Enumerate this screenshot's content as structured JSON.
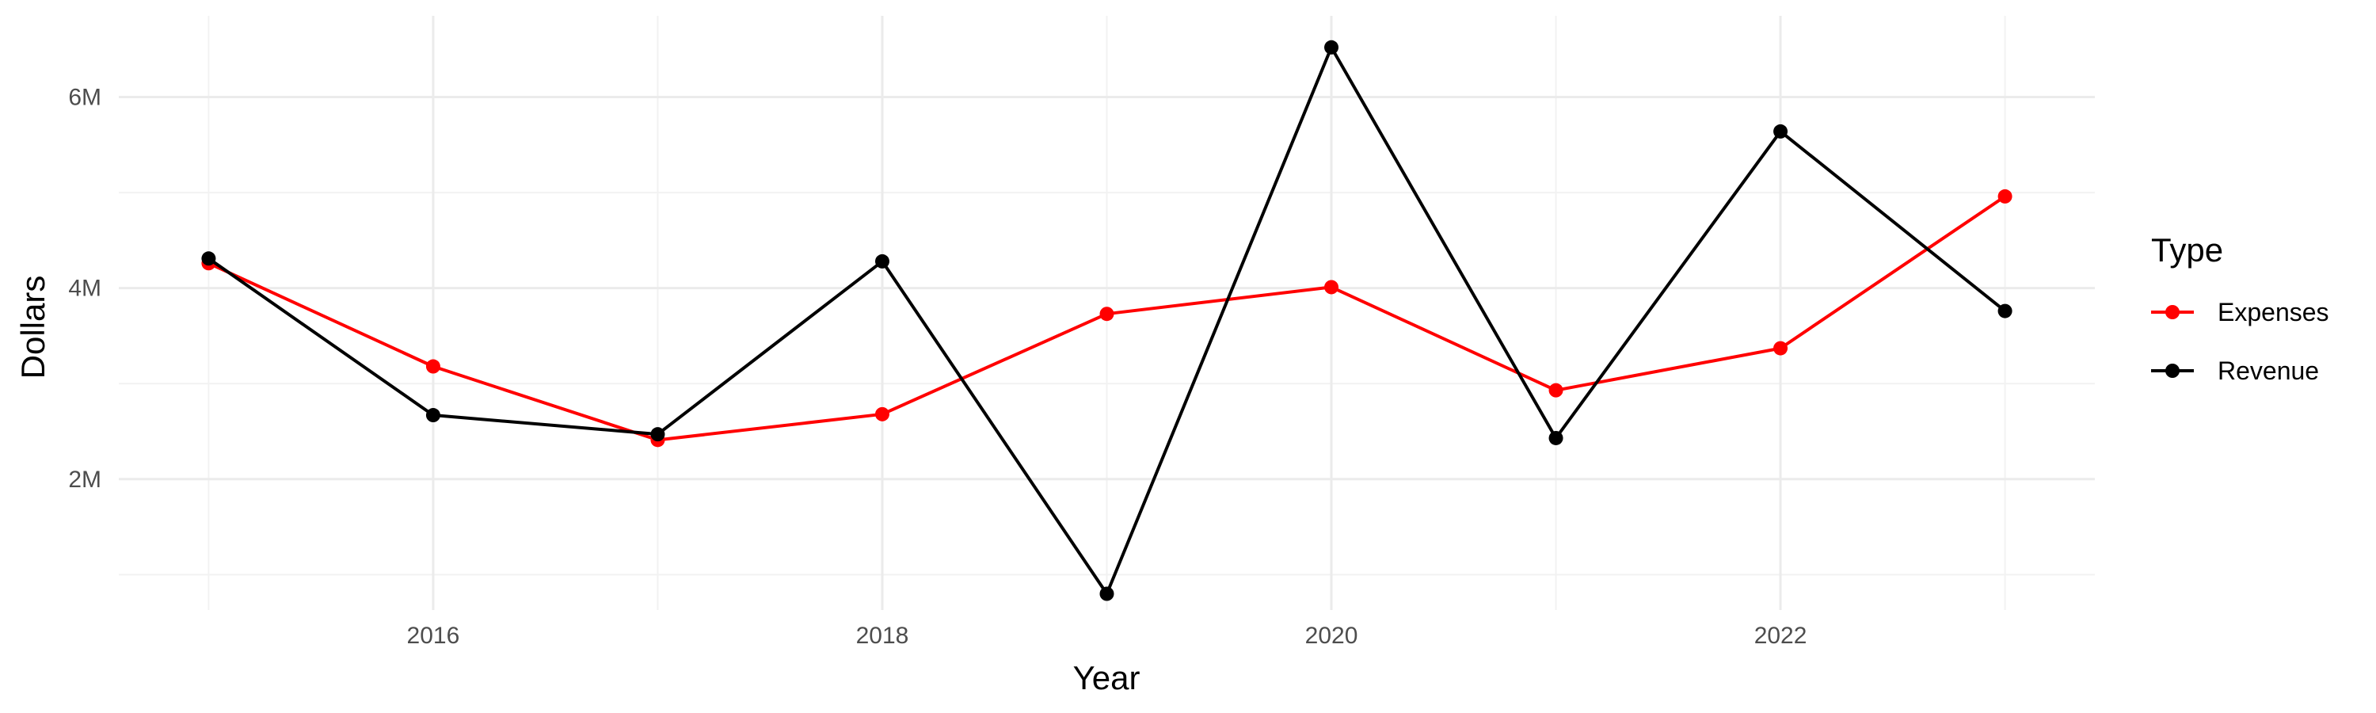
{
  "chart_data": {
    "type": "line",
    "x": [
      2015,
      2016,
      2017,
      2018,
      2019,
      2020,
      2021,
      2022,
      2023
    ],
    "xticks": [
      2016,
      2018,
      2020,
      2022
    ],
    "yticks": [
      2000000,
      4000000,
      6000000
    ],
    "ytick_labels": [
      "2M",
      "4M",
      "6M"
    ],
    "xlabel": "Year",
    "ylabel": "Dollars",
    "xlim": [
      2014.6,
      2023.4
    ],
    "ylim": [
      630000,
      6850000
    ],
    "grid": true,
    "legend": {
      "title": "Type",
      "position": "right"
    },
    "series": [
      {
        "name": "Expenses",
        "color": "#ff0000",
        "values": [
          4260000,
          3180000,
          2410000,
          2680000,
          3730000,
          4010000,
          2930000,
          3370000,
          4960000
        ]
      },
      {
        "name": "Revenue",
        "color": "#000000",
        "values": [
          4310000,
          2670000,
          2470000,
          4280000,
          800000,
          6520000,
          2430000,
          5640000,
          3760000
        ]
      }
    ]
  }
}
